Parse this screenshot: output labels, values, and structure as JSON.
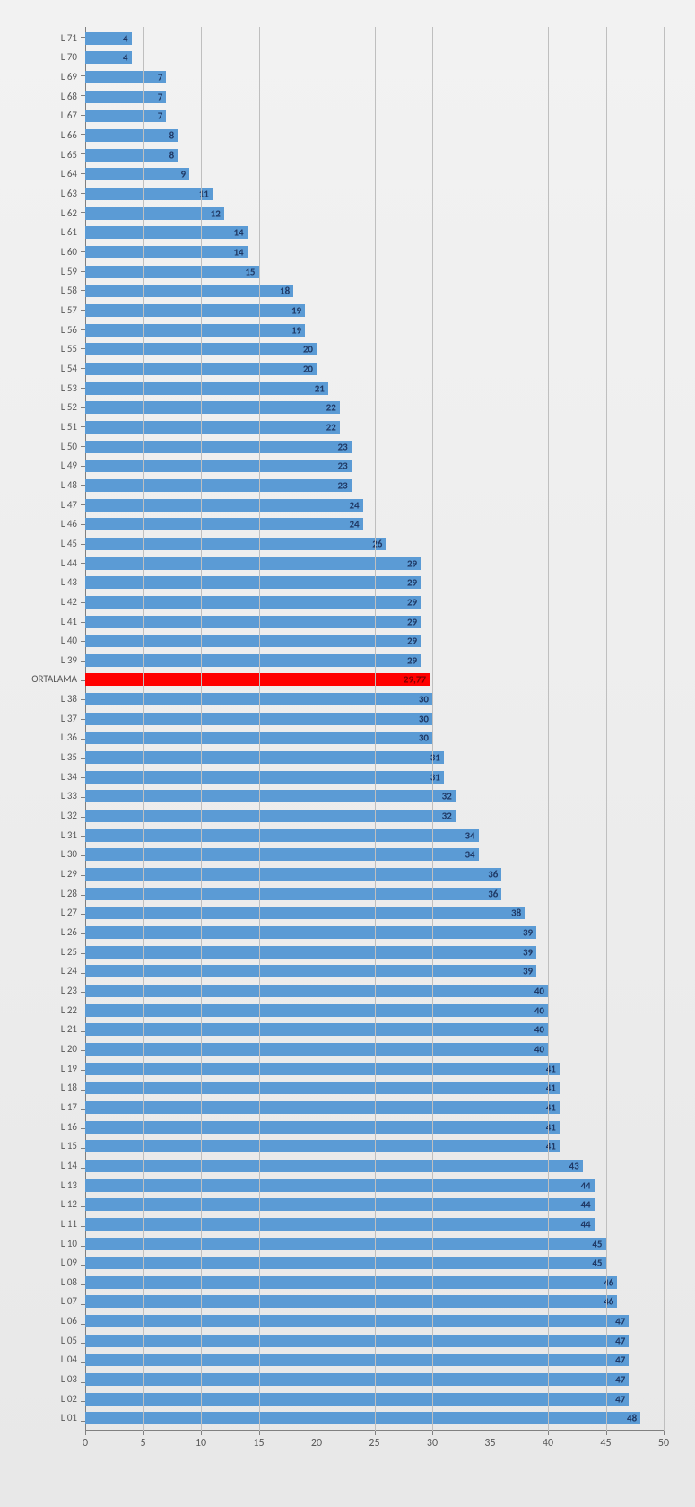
{
  "chart": {
    "type": "bar-horizontal",
    "background_gradient": [
      "#f2f2f2",
      "#e8e8e8"
    ],
    "grid_color": "#bfbfbf",
    "axis_color": "#808080",
    "bar_color_default": "#5b9bd5",
    "bar_color_highlight": "#ff0000",
    "xlim": [
      0,
      50
    ],
    "xtick_step": 5,
    "xticks": [
      0,
      5,
      10,
      15,
      20,
      25,
      30,
      35,
      40,
      45,
      50
    ],
    "label_fontsize": 11,
    "tick_fontsize": 12,
    "data_label_color": "#1f3864",
    "data": [
      {
        "label": "L 71",
        "value": 4,
        "display": "4",
        "highlight": false
      },
      {
        "label": "L 70",
        "value": 4,
        "display": "4",
        "highlight": false
      },
      {
        "label": "L 69",
        "value": 7,
        "display": "7",
        "highlight": false
      },
      {
        "label": "L 68",
        "value": 7,
        "display": "7",
        "highlight": false
      },
      {
        "label": "L 67",
        "value": 7,
        "display": "7",
        "highlight": false
      },
      {
        "label": "L 66",
        "value": 8,
        "display": "8",
        "highlight": false
      },
      {
        "label": "L 65",
        "value": 8,
        "display": "8",
        "highlight": false
      },
      {
        "label": "L 64",
        "value": 9,
        "display": "9",
        "highlight": false
      },
      {
        "label": "L 63",
        "value": 11,
        "display": "11",
        "highlight": false
      },
      {
        "label": "L 62",
        "value": 12,
        "display": "12",
        "highlight": false
      },
      {
        "label": "L 61",
        "value": 14,
        "display": "14",
        "highlight": false
      },
      {
        "label": "L 60",
        "value": 14,
        "display": "14",
        "highlight": false
      },
      {
        "label": "L 59",
        "value": 15,
        "display": "15",
        "highlight": false
      },
      {
        "label": "L 58",
        "value": 18,
        "display": "18",
        "highlight": false
      },
      {
        "label": "L 57",
        "value": 19,
        "display": "19",
        "highlight": false
      },
      {
        "label": "L 56",
        "value": 19,
        "display": "19",
        "highlight": false
      },
      {
        "label": "L 55",
        "value": 20,
        "display": "20",
        "highlight": false
      },
      {
        "label": "L 54",
        "value": 20,
        "display": "20",
        "highlight": false
      },
      {
        "label": "L 53",
        "value": 21,
        "display": "21",
        "highlight": false
      },
      {
        "label": "L 52",
        "value": 22,
        "display": "22",
        "highlight": false
      },
      {
        "label": "L 51",
        "value": 22,
        "display": "22",
        "highlight": false
      },
      {
        "label": "L 50",
        "value": 23,
        "display": "23",
        "highlight": false
      },
      {
        "label": "L 49",
        "value": 23,
        "display": "23",
        "highlight": false
      },
      {
        "label": "L 48",
        "value": 23,
        "display": "23",
        "highlight": false
      },
      {
        "label": "L 47",
        "value": 24,
        "display": "24",
        "highlight": false
      },
      {
        "label": "L 46",
        "value": 24,
        "display": "24",
        "highlight": false
      },
      {
        "label": "L 45",
        "value": 26,
        "display": "26",
        "highlight": false
      },
      {
        "label": "L 44",
        "value": 29,
        "display": "29",
        "highlight": false
      },
      {
        "label": "L 43",
        "value": 29,
        "display": "29",
        "highlight": false
      },
      {
        "label": "L 42",
        "value": 29,
        "display": "29",
        "highlight": false
      },
      {
        "label": "L 41",
        "value": 29,
        "display": "29",
        "highlight": false
      },
      {
        "label": "L 40",
        "value": 29,
        "display": "29",
        "highlight": false
      },
      {
        "label": "L 39",
        "value": 29,
        "display": "29",
        "highlight": false
      },
      {
        "label": "ORTALAMA",
        "value": 29.77,
        "display": "29,77",
        "highlight": true
      },
      {
        "label": "L 38",
        "value": 30,
        "display": "30",
        "highlight": false
      },
      {
        "label": "L 37",
        "value": 30,
        "display": "30",
        "highlight": false
      },
      {
        "label": "L 36",
        "value": 30,
        "display": "30",
        "highlight": false
      },
      {
        "label": "L 35",
        "value": 31,
        "display": "31",
        "highlight": false
      },
      {
        "label": "L 34",
        "value": 31,
        "display": "31",
        "highlight": false
      },
      {
        "label": "L 33",
        "value": 32,
        "display": "32",
        "highlight": false
      },
      {
        "label": "L 32",
        "value": 32,
        "display": "32",
        "highlight": false
      },
      {
        "label": "L 31",
        "value": 34,
        "display": "34",
        "highlight": false
      },
      {
        "label": "L 30",
        "value": 34,
        "display": "34",
        "highlight": false
      },
      {
        "label": "L 29",
        "value": 36,
        "display": "36",
        "highlight": false
      },
      {
        "label": "L 28",
        "value": 36,
        "display": "36",
        "highlight": false
      },
      {
        "label": "L 27",
        "value": 38,
        "display": "38",
        "highlight": false
      },
      {
        "label": "L 26",
        "value": 39,
        "display": "39",
        "highlight": false
      },
      {
        "label": "L 25",
        "value": 39,
        "display": "39",
        "highlight": false
      },
      {
        "label": "L 24",
        "value": 39,
        "display": "39",
        "highlight": false
      },
      {
        "label": "L 23",
        "value": 40,
        "display": "40",
        "highlight": false
      },
      {
        "label": "L 22",
        "value": 40,
        "display": "40",
        "highlight": false
      },
      {
        "label": "L 21",
        "value": 40,
        "display": "40",
        "highlight": false
      },
      {
        "label": "L 20",
        "value": 40,
        "display": "40",
        "highlight": false
      },
      {
        "label": "L 19",
        "value": 41,
        "display": "41",
        "highlight": false
      },
      {
        "label": "L 18",
        "value": 41,
        "display": "41",
        "highlight": false
      },
      {
        "label": "L 17",
        "value": 41,
        "display": "41",
        "highlight": false
      },
      {
        "label": "L 16",
        "value": 41,
        "display": "41",
        "highlight": false
      },
      {
        "label": "L 15",
        "value": 41,
        "display": "41",
        "highlight": false
      },
      {
        "label": "L 14",
        "value": 43,
        "display": "43",
        "highlight": false
      },
      {
        "label": "L 13",
        "value": 44,
        "display": "44",
        "highlight": false
      },
      {
        "label": "L 12",
        "value": 44,
        "display": "44",
        "highlight": false
      },
      {
        "label": "L 11",
        "value": 44,
        "display": "44",
        "highlight": false
      },
      {
        "label": "L 10",
        "value": 45,
        "display": "45",
        "highlight": false
      },
      {
        "label": "L 09",
        "value": 45,
        "display": "45",
        "highlight": false
      },
      {
        "label": "L 08",
        "value": 46,
        "display": "46",
        "highlight": false
      },
      {
        "label": "L 07",
        "value": 46,
        "display": "46",
        "highlight": false
      },
      {
        "label": "L 06",
        "value": 47,
        "display": "47",
        "highlight": false
      },
      {
        "label": "L 05",
        "value": 47,
        "display": "47",
        "highlight": false
      },
      {
        "label": "L 04",
        "value": 47,
        "display": "47",
        "highlight": false
      },
      {
        "label": "L 03",
        "value": 47,
        "display": "47",
        "highlight": false
      },
      {
        "label": "L 02",
        "value": 47,
        "display": "47",
        "highlight": false
      },
      {
        "label": "L 01",
        "value": 48,
        "display": "48",
        "highlight": false
      }
    ]
  }
}
